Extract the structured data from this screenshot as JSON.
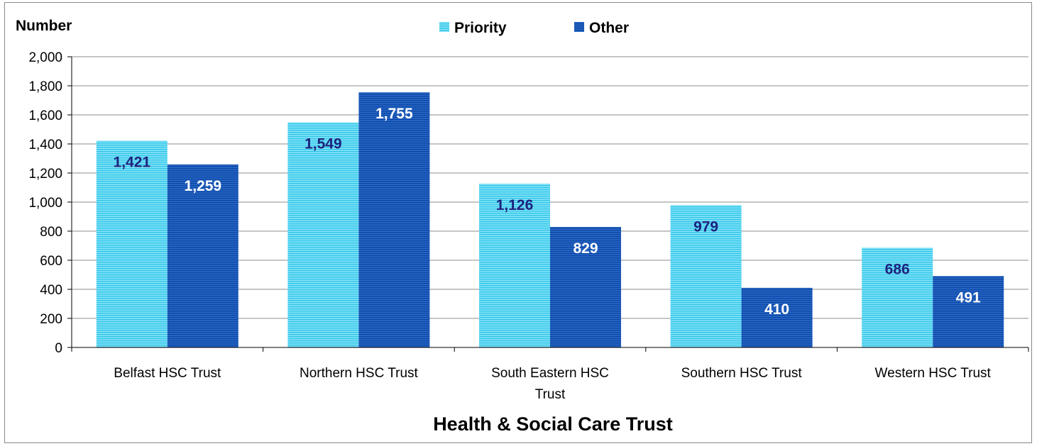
{
  "chart_data": {
    "type": "bar",
    "ylabel": "Number",
    "xlabel": "Health & Social Care Trust",
    "categories": [
      [
        "Belfast HSC Trust"
      ],
      [
        "Northern HSC Trust"
      ],
      [
        "South Eastern HSC",
        "Trust"
      ],
      [
        "Southern HSC Trust"
      ],
      [
        "Western HSC Trust"
      ]
    ],
    "series": [
      {
        "name": "Priority",
        "values": [
          1421,
          1549,
          1126,
          979,
          686
        ],
        "labels": [
          "1,421",
          "1,549",
          "1,126",
          "979",
          "686"
        ],
        "color": "#4fd0ee",
        "label_color": "#1a237e"
      },
      {
        "name": "Other",
        "values": [
          1259,
          1755,
          829,
          410,
          491
        ],
        "labels": [
          "1,259",
          "1,755",
          "829",
          "410",
          "491"
        ],
        "color": "#1652b4",
        "label_color": "#ffffff"
      }
    ],
    "ylim": [
      0,
      2000
    ],
    "yticks": [
      "0",
      "200",
      "400",
      "600",
      "800",
      "1,000",
      "1,200",
      "1,400",
      "1,600",
      "1,800",
      "2,000"
    ],
    "grid": true,
    "legend_position": "top-center"
  }
}
